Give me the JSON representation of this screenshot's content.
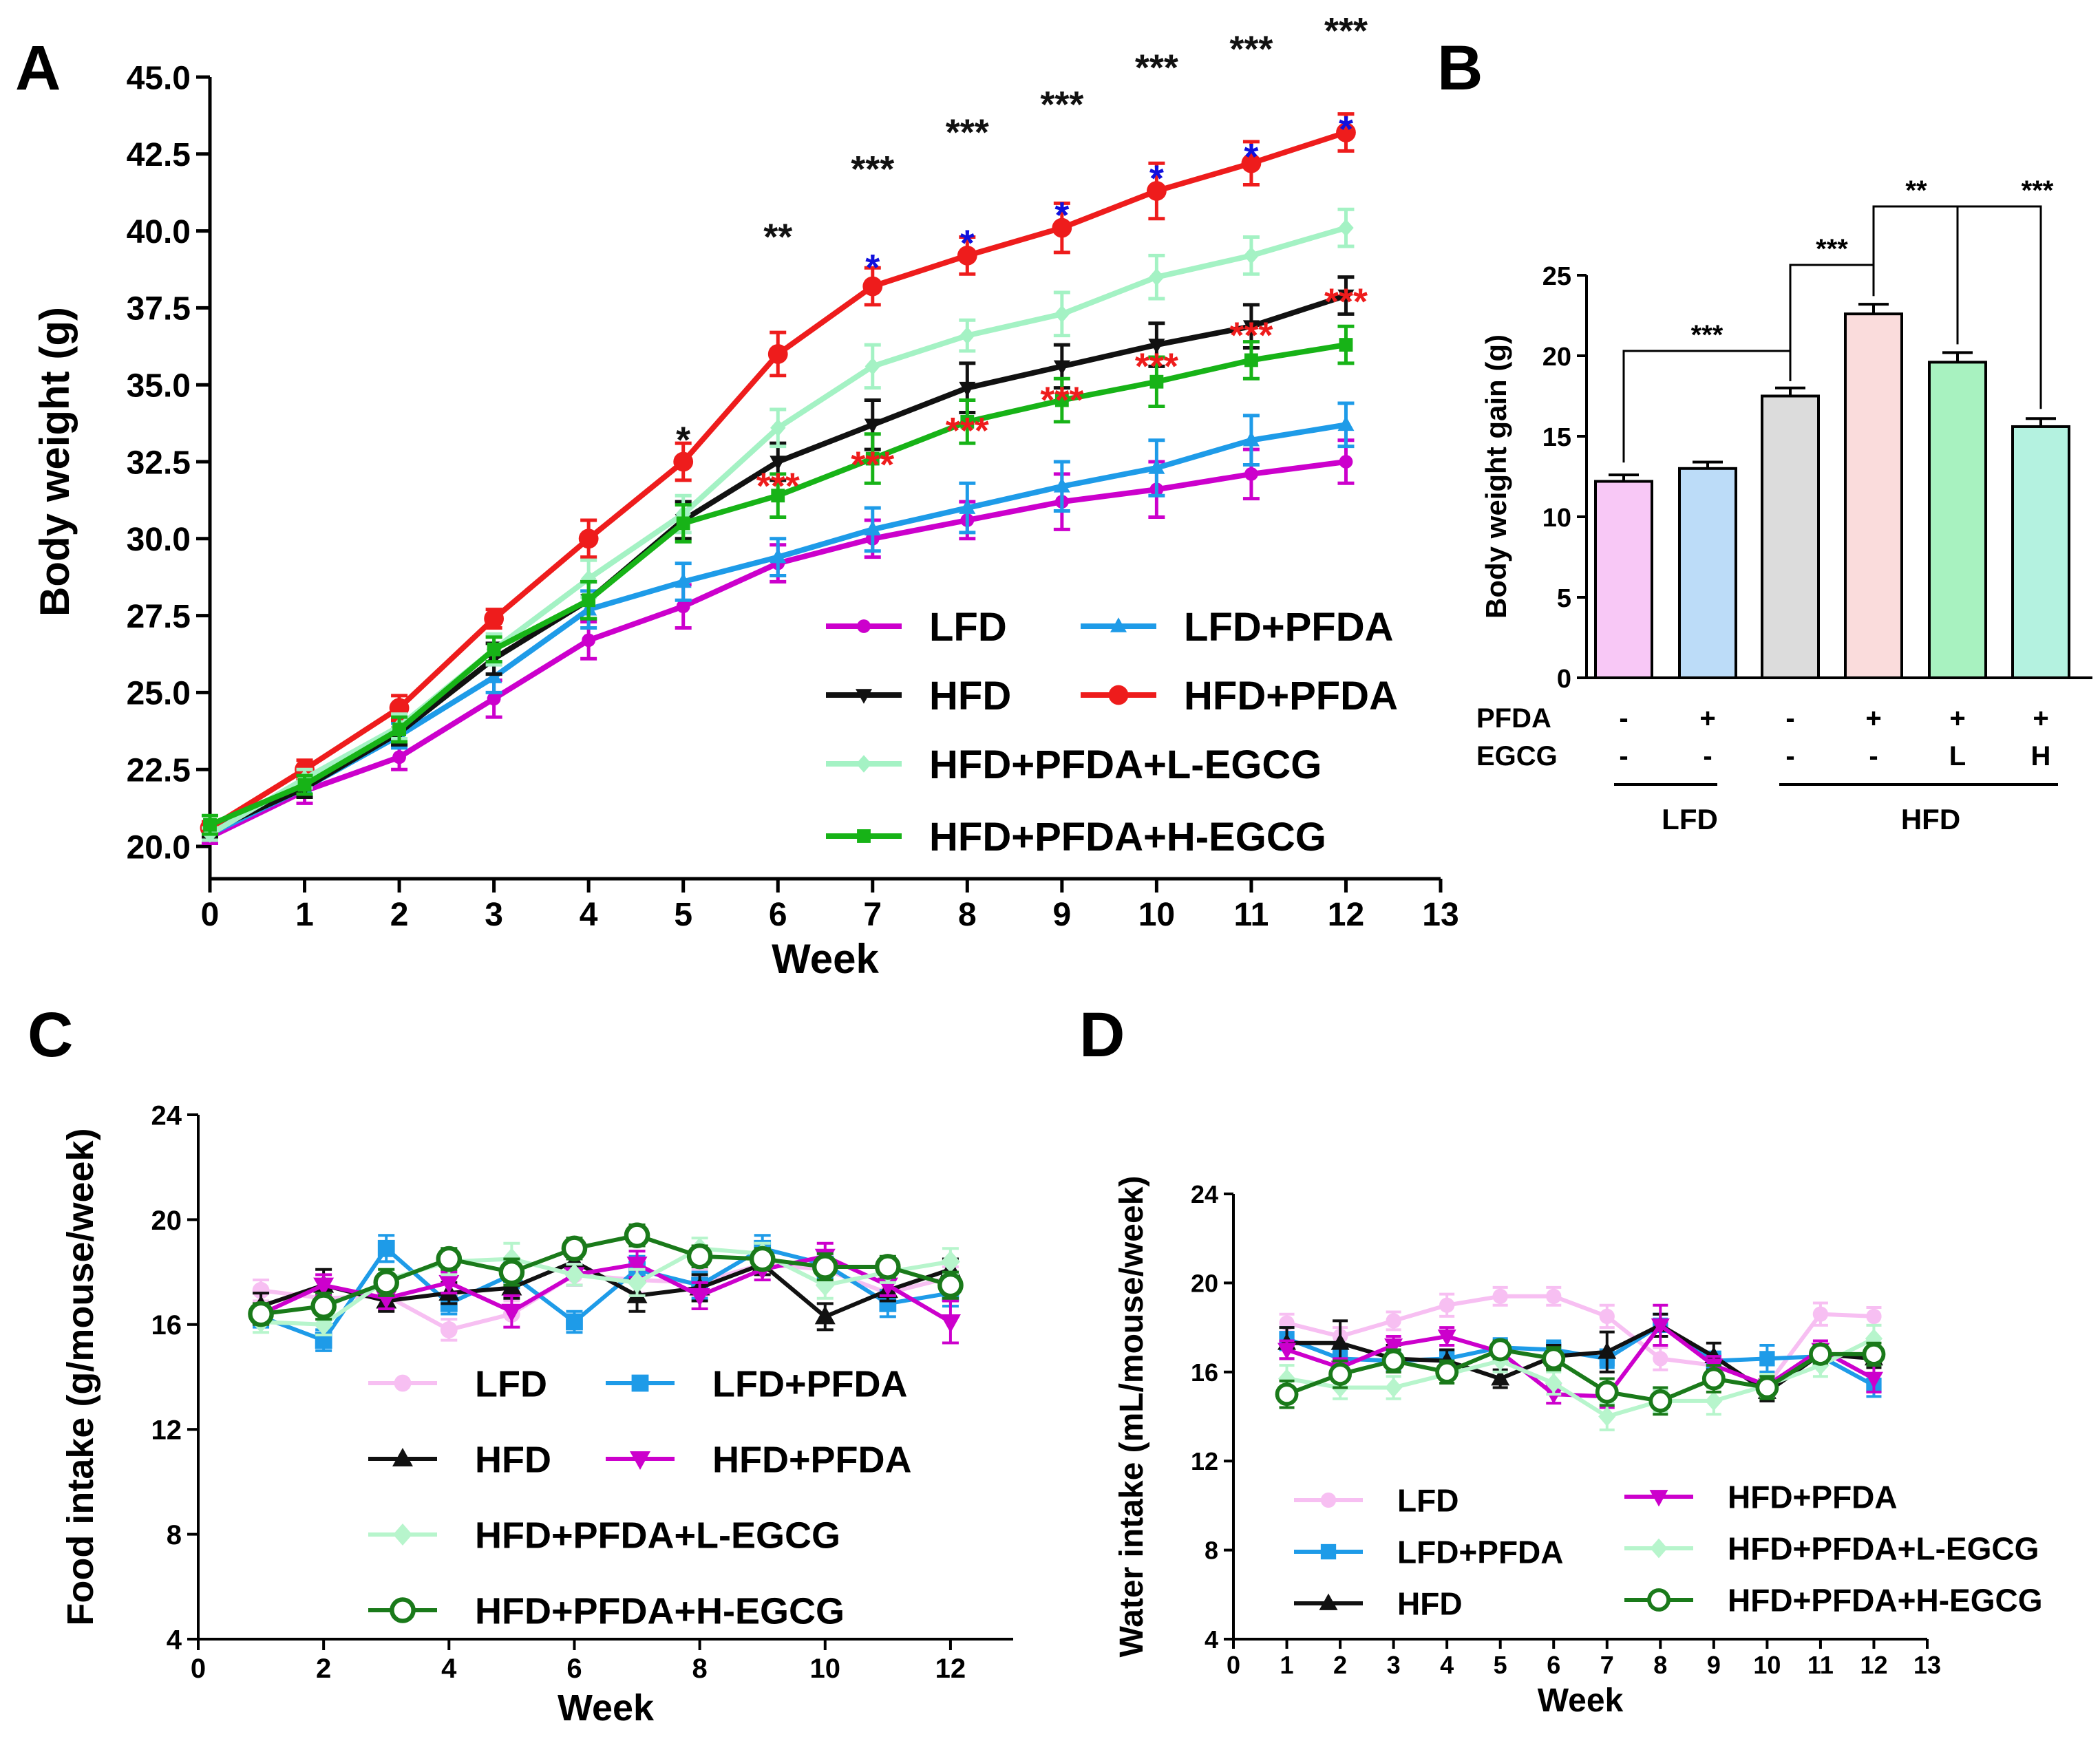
{
  "colors": {
    "LFD_A": "#cc00cc",
    "LFD_PFDA": "#1e9be8",
    "HFD": "#111111",
    "HFD_PFDA": "#ee1c1c",
    "L_EGCG": "#a4f2c4",
    "H_EGCG": "#17b317",
    "LFD_C": "#f7bff2",
    "LFD_PFDA_C": "#1e9be8",
    "HFD_PFDA_C": "#cc00cc",
    "L_EGCG_C": "#b7f5cc",
    "H_EGCG_C": "#1a7a1a",
    "sig_black": "#111111",
    "sig_blue": "#1010dd",
    "sig_red": "#ee1c1c",
    "bar_LFD": "#f8c8f6",
    "bar_LFD_PFDA": "#bcdcf8",
    "bar_HFD": "#dcdcdc",
    "bar_HFD_PFDA": "#fadcdc",
    "bar_L": "#a8f2c0",
    "bar_H": "#b4f2e0"
  },
  "chart_data": [
    {
      "panel": "A",
      "type": "line",
      "xlabel": "Week",
      "ylabel": "Body weight (g)",
      "xlim": [
        0,
        13
      ],
      "ylim": [
        20,
        45
      ],
      "xticks": [
        "0",
        "1",
        "2",
        "3",
        "4",
        "5",
        "6",
        "7",
        "8",
        "9",
        "10",
        "11",
        "12",
        "13"
      ],
      "yticks": [
        "20.0",
        "22.5",
        "25.0",
        "27.5",
        "30.0",
        "32.5",
        "35.0",
        "37.5",
        "40.0",
        "42.5",
        "45.0"
      ],
      "x": [
        0,
        1,
        2,
        3,
        4,
        5,
        6,
        7,
        8,
        9,
        10,
        11,
        12
      ],
      "series": [
        {
          "key": "LFD",
          "name": "LFD",
          "color": "#cc00cc",
          "marker": "circle",
          "values": [
            20.3,
            21.8,
            22.9,
            24.8,
            26.7,
            27.8,
            29.2,
            30.0,
            30.6,
            31.2,
            31.6,
            32.1,
            32.5
          ],
          "err": [
            0.2,
            0.4,
            0.4,
            0.6,
            0.6,
            0.7,
            0.6,
            0.6,
            0.6,
            0.9,
            0.9,
            0.8,
            0.7
          ]
        },
        {
          "key": "LFD_PFDA",
          "name": "LFD+PFDA",
          "color": "#1e9be8",
          "marker": "triangle",
          "values": [
            20.4,
            21.9,
            23.6,
            25.5,
            27.7,
            28.6,
            29.4,
            30.3,
            31.0,
            31.7,
            32.3,
            33.2,
            33.7
          ],
          "err": [
            0.2,
            0.3,
            0.4,
            0.5,
            0.6,
            0.6,
            0.6,
            0.7,
            0.8,
            0.8,
            0.9,
            0.8,
            0.7
          ]
        },
        {
          "key": "HFD",
          "name": "HFD",
          "color": "#111111",
          "marker": "tri-down",
          "values": [
            20.5,
            21.9,
            23.7,
            26.1,
            28.0,
            30.6,
            32.5,
            33.7,
            34.9,
            35.6,
            36.3,
            36.9,
            37.9
          ],
          "err": [
            0.2,
            0.3,
            0.4,
            0.5,
            0.6,
            0.6,
            0.6,
            0.8,
            0.8,
            0.7,
            0.7,
            0.7,
            0.6
          ]
        },
        {
          "key": "HFD_PFDA",
          "name": "HFD+PFDA",
          "color": "#ee1c1c",
          "marker": "circle-big",
          "values": [
            20.6,
            22.5,
            24.5,
            27.4,
            30.0,
            32.5,
            36.0,
            38.2,
            39.2,
            40.1,
            41.3,
            42.2,
            43.2
          ],
          "err": [
            0.2,
            0.3,
            0.4,
            0.3,
            0.6,
            0.6,
            0.7,
            0.6,
            0.6,
            0.8,
            0.9,
            0.7,
            0.6
          ]
        },
        {
          "key": "L_EGCG",
          "name": "HFD+PFDA+L-EGCG",
          "color": "#a4f2c4",
          "marker": "diamond",
          "values": [
            20.4,
            22.2,
            23.9,
            26.4,
            28.7,
            30.8,
            33.6,
            35.6,
            36.6,
            37.3,
            38.5,
            39.2,
            40.1
          ],
          "err": [
            0.2,
            0.3,
            0.4,
            0.5,
            0.6,
            0.6,
            0.6,
            0.7,
            0.5,
            0.7,
            0.7,
            0.6,
            0.6
          ]
        },
        {
          "key": "H_EGCG",
          "name": "HFD+PFDA+H-EGCG",
          "color": "#17b317",
          "marker": "square",
          "values": [
            20.7,
            22.0,
            23.8,
            26.4,
            28.0,
            30.5,
            31.4,
            32.6,
            33.8,
            34.5,
            35.1,
            35.8,
            36.3
          ],
          "err": [
            0.3,
            0.3,
            0.4,
            0.4,
            0.6,
            0.6,
            0.7,
            0.8,
            0.7,
            0.7,
            0.8,
            0.6,
            0.6
          ]
        }
      ],
      "legend": [
        "LFD",
        "LFD+PFDA",
        "HFD",
        "HFD+PFDA",
        "HFD+PFDA+L-EGCG",
        "HFD+PFDA+H-EGCG"
      ],
      "annotations": [
        {
          "week": 5,
          "text": "*",
          "color": "black",
          "y": 32.8
        },
        {
          "week": 6,
          "text": "**",
          "color": "black",
          "y": 39.4
        },
        {
          "week": 7,
          "text": "***",
          "color": "black",
          "y": 41.6
        },
        {
          "week": 8,
          "text": "***",
          "color": "black",
          "y": 42.8
        },
        {
          "week": 9,
          "text": "***",
          "color": "black",
          "y": 43.7
        },
        {
          "week": 10,
          "text": "***",
          "color": "black",
          "y": 44.9
        },
        {
          "week": 11,
          "text": "***",
          "color": "black",
          "y": 45.5
        },
        {
          "week": 12,
          "text": "***",
          "color": "black",
          "y": 46.1
        },
        {
          "week": 7,
          "text": "*",
          "color": "blue",
          "y": 38.4
        },
        {
          "week": 8,
          "text": "*",
          "color": "blue",
          "y": 39.2
        },
        {
          "week": 9,
          "text": "*",
          "color": "blue",
          "y": 40.1
        },
        {
          "week": 10,
          "text": "*",
          "color": "blue",
          "y": 41.3
        },
        {
          "week": 11,
          "text": "*",
          "color": "blue",
          "y": 42.0
        },
        {
          "week": 12,
          "text": "*",
          "color": "blue",
          "y": 42.9
        },
        {
          "week": 6,
          "text": "***",
          "color": "red",
          "y": 31.3
        },
        {
          "week": 7,
          "text": "***",
          "color": "red",
          "y": 32.0
        },
        {
          "week": 8,
          "text": "***",
          "color": "red",
          "y": 33.1
        },
        {
          "week": 9,
          "text": "***",
          "color": "red",
          "y": 34.1
        },
        {
          "week": 10,
          "text": "***",
          "color": "red",
          "y": 35.2
        },
        {
          "week": 11,
          "text": "***",
          "color": "red",
          "y": 36.2
        },
        {
          "week": 12,
          "text": "***",
          "color": "red",
          "y": 37.3
        }
      ]
    },
    {
      "panel": "B",
      "type": "bar",
      "ylabel": "Body weight gain (g)",
      "ylim": [
        0,
        25
      ],
      "yticks": [
        "0",
        "5",
        "10",
        "15",
        "20",
        "25"
      ],
      "categories": [
        "LFD",
        "LFD+PFDA",
        "HFD",
        "HFD+PFDA",
        "HFD+PFDA+L-EGCG",
        "HFD+PFDA+H-EGCG"
      ],
      "values": [
        12.2,
        13.0,
        17.5,
        22.6,
        19.6,
        15.6
      ],
      "err": [
        0.4,
        0.4,
        0.5,
        0.6,
        0.6,
        0.5
      ],
      "pfda_row_label": "PFDA",
      "egcg_row_label": "EGCG",
      "pfda": [
        "-",
        "+",
        "-",
        "+",
        "+",
        "+"
      ],
      "egcg": [
        "-",
        "-",
        "-",
        "-",
        "L",
        "H"
      ],
      "group_labels": [
        "LFD",
        "HFD"
      ],
      "comparisons": [
        {
          "from": 0,
          "to": 2,
          "text": "***"
        },
        {
          "from": 2,
          "to": 3,
          "text": "***"
        },
        {
          "from": 3,
          "to": 4,
          "text": "**"
        },
        {
          "from": 3,
          "to": 5,
          "text": "***"
        }
      ]
    },
    {
      "panel": "C",
      "type": "line",
      "xlabel": "Week",
      "ylabel": "Food intake (g/mouse/week)",
      "xlim": [
        0,
        13
      ],
      "ylim": [
        4,
        24
      ],
      "xticks": [
        "0",
        "2",
        "4",
        "6",
        "8",
        "10",
        "12"
      ],
      "yticks": [
        "4",
        "8",
        "12",
        "16",
        "20",
        "24"
      ],
      "x": [
        1,
        2,
        3,
        4,
        5,
        6,
        7,
        8,
        9,
        10,
        11,
        12
      ],
      "series": [
        {
          "key": "LFD_C",
          "name": "LFD",
          "color": "#f7bff2",
          "marker": "circle",
          "values": [
            17.3,
            17.0,
            17.1,
            15.8,
            16.4,
            17.9,
            17.7,
            17.6,
            18.3,
            18.1,
            17.2,
            17.8
          ],
          "err": [
            0.4,
            0.4,
            0.4,
            0.4,
            0.5,
            0.4,
            0.5,
            0.5,
            0.4,
            0.5,
            0.5,
            0.4
          ]
        },
        {
          "key": "LFD_PFDA",
          "name": "LFD+PFDA",
          "color": "#1e9be8",
          "marker": "square",
          "values": [
            16.3,
            15.4,
            18.9,
            16.8,
            17.9,
            16.1,
            18.1,
            17.5,
            18.9,
            18.3,
            16.8,
            17.2
          ],
          "err": [
            0.4,
            0.4,
            0.5,
            0.4,
            0.5,
            0.4,
            0.5,
            0.5,
            0.5,
            0.5,
            0.5,
            0.5
          ]
        },
        {
          "key": "HFD",
          "name": "HFD",
          "color": "#111111",
          "marker": "triangle",
          "values": [
            16.7,
            17.5,
            16.9,
            17.2,
            17.4,
            18.4,
            17.1,
            17.4,
            18.3,
            16.3,
            17.3,
            18.1
          ],
          "err": [
            0.5,
            0.6,
            0.4,
            0.4,
            0.4,
            0.4,
            0.6,
            0.5,
            0.4,
            0.5,
            0.4,
            0.4
          ]
        },
        {
          "key": "HFD_PFDA_C",
          "name": "HFD+PFDA",
          "color": "#cc00cc",
          "marker": "tri-down",
          "values": [
            16.4,
            17.5,
            17.0,
            17.6,
            16.5,
            17.9,
            18.3,
            17.1,
            18.1,
            18.6,
            17.5,
            16.1
          ],
          "err": [
            0.4,
            0.4,
            0.4,
            0.4,
            0.6,
            0.4,
            0.5,
            0.5,
            0.4,
            0.5,
            0.4,
            0.8
          ]
        },
        {
          "key": "L_EGCG_C",
          "name": "HFD+PFDA+L-EGCG",
          "color": "#b7f5cc",
          "marker": "diamond",
          "values": [
            16.1,
            16.0,
            17.7,
            18.4,
            18.5,
            17.9,
            17.6,
            18.9,
            18.7,
            17.5,
            18.0,
            18.4
          ],
          "err": [
            0.4,
            0.4,
            0.4,
            0.5,
            0.6,
            0.4,
            0.5,
            0.4,
            0.4,
            0.5,
            0.4,
            0.5
          ]
        },
        {
          "key": "H_EGCG_C",
          "name": "HFD+PFDA+H-EGCG",
          "color": "#1a7a1a",
          "marker": "circle-open",
          "values": [
            16.4,
            16.7,
            17.6,
            18.5,
            18.0,
            18.9,
            19.4,
            18.6,
            18.5,
            18.2,
            18.2,
            17.5
          ],
          "err": [
            0.4,
            0.5,
            0.5,
            0.4,
            0.5,
            0.4,
            0.4,
            0.4,
            0.4,
            0.5,
            0.4,
            0.5
          ]
        }
      ],
      "legend": [
        "LFD",
        "LFD+PFDA",
        "HFD",
        "HFD+PFDA",
        "HFD+PFDA+L-EGCG",
        "HFD+PFDA+H-EGCG"
      ]
    },
    {
      "panel": "D",
      "type": "line",
      "xlabel": "Week",
      "ylabel": "Water intake (mL/mouse/week)",
      "xlim": [
        0,
        13
      ],
      "ylim": [
        4,
        24
      ],
      "xticks": [
        "0",
        "1",
        "2",
        "3",
        "4",
        "5",
        "6",
        "7",
        "8",
        "9",
        "10",
        "11",
        "12",
        "13"
      ],
      "yticks": [
        "4",
        "8",
        "12",
        "16",
        "20",
        "24"
      ],
      "x": [
        1,
        2,
        3,
        4,
        5,
        6,
        7,
        8,
        9,
        10,
        11,
        12
      ],
      "series": [
        {
          "key": "LFD_C",
          "name": "LFD",
          "color": "#f7bff2",
          "marker": "circle",
          "values": [
            18.2,
            17.6,
            18.3,
            19.0,
            19.4,
            19.4,
            18.5,
            16.6,
            16.3,
            15.4,
            18.6,
            18.5
          ],
          "err": [
            0.4,
            0.4,
            0.4,
            0.5,
            0.4,
            0.4,
            0.5,
            0.5,
            0.4,
            0.5,
            0.5,
            0.4
          ]
        },
        {
          "key": "LFD_PFDA",
          "name": "LFD+PFDA",
          "color": "#1e9be8",
          "marker": "square",
          "values": [
            17.5,
            16.6,
            16.5,
            16.6,
            17.1,
            17.0,
            16.6,
            18.1,
            16.5,
            16.6,
            16.7,
            15.4
          ],
          "err": [
            0.5,
            0.4,
            0.4,
            0.4,
            0.4,
            0.4,
            0.4,
            0.5,
            0.4,
            0.6,
            0.4,
            0.5
          ]
        },
        {
          "key": "HFD",
          "name": "HFD",
          "color": "#111111",
          "marker": "triangle",
          "values": [
            17.3,
            17.3,
            16.6,
            16.5,
            15.7,
            16.7,
            16.9,
            18.1,
            16.7,
            15.1,
            16.8,
            16.6
          ],
          "err": [
            0.7,
            1.0,
            0.6,
            0.5,
            0.4,
            0.5,
            0.9,
            0.5,
            0.6,
            0.4,
            0.4,
            0.4
          ]
        },
        {
          "key": "HFD_PFDA_C",
          "name": "HFD+PFDA",
          "color": "#cc00cc",
          "marker": "tri-down",
          "values": [
            17.0,
            16.2,
            17.2,
            17.6,
            16.9,
            15.0,
            14.9,
            18.1,
            16.3,
            15.4,
            17.0,
            15.7
          ],
          "err": [
            0.4,
            0.4,
            0.4,
            0.4,
            0.4,
            0.4,
            0.5,
            0.9,
            0.4,
            0.4,
            0.4,
            0.6
          ]
        },
        {
          "key": "L_EGCG_C",
          "name": "HFD+PFDA+L-EGCG",
          "color": "#b7f5cc",
          "marker": "diamond",
          "values": [
            15.7,
            15.3,
            15.3,
            15.9,
            16.5,
            15.5,
            14.0,
            14.7,
            14.7,
            15.4,
            16.3,
            17.5
          ],
          "err": [
            0.6,
            0.5,
            0.5,
            0.4,
            0.5,
            0.5,
            0.6,
            0.5,
            0.6,
            0.5,
            0.5,
            0.6
          ]
        },
        {
          "key": "H_EGCG_C",
          "name": "HFD+PFDA+H-EGCG",
          "color": "#1a7a1a",
          "marker": "circle-open",
          "values": [
            15.0,
            15.9,
            16.5,
            16.0,
            17.0,
            16.6,
            15.1,
            14.7,
            15.7,
            15.3,
            16.8,
            16.8
          ],
          "err": [
            0.6,
            0.6,
            0.5,
            0.5,
            0.4,
            0.5,
            0.6,
            0.6,
            0.6,
            0.5,
            0.4,
            0.5
          ]
        }
      ],
      "legend": [
        "LFD",
        "HFD+PFDA",
        "LFD+PFDA",
        "HFD+PFDA+L-EGCG",
        "HFD",
        "HFD+PFDA+H-EGCG"
      ]
    }
  ],
  "panel_labels": {
    "a": "A",
    "b": "B",
    "c": "C",
    "d": "D"
  }
}
